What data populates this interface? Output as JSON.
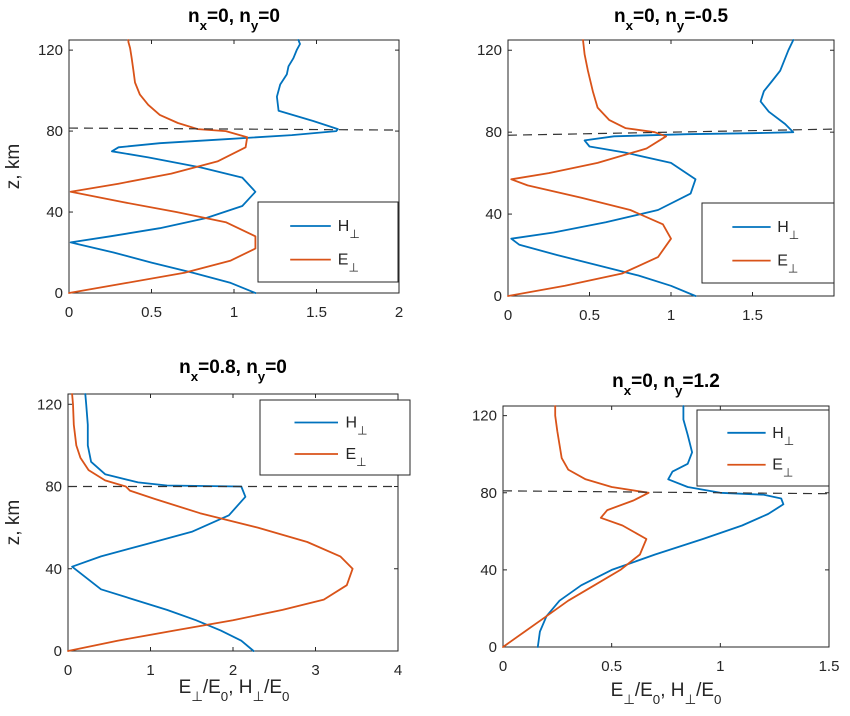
{
  "colors": {
    "H": "#0072BD",
    "E": "#D95319",
    "axis": "#262626",
    "dash": "#333333"
  },
  "xlabel_parts": [
    "E",
    "⊥",
    "/E",
    "0",
    ", H",
    "⊥",
    "/E",
    "0"
  ],
  "chart_data": [
    {
      "type": "line",
      "title_parts": [
        "n",
        "x",
        "=0, n",
        "y",
        "=0"
      ],
      "ylabel": "z, km",
      "xlim": [
        0,
        2
      ],
      "ylim": [
        0,
        125
      ],
      "xticks": [
        0,
        0.5,
        1,
        1.5,
        2
      ],
      "xtick_labels": [
        "0",
        "0.5",
        "1",
        "1.5",
        "2"
      ],
      "yticks": [
        0,
        40,
        80,
        120
      ],
      "ytick_labels": [
        "0",
        "40",
        "80",
        "120"
      ],
      "boundary_z": [
        81.5,
        80.5
      ],
      "legend": {
        "placement": "right-middle",
        "entries": [
          [
            "H",
            "⊥"
          ],
          [
            "E",
            "⊥"
          ]
        ]
      },
      "series": [
        {
          "name": "H⊥",
          "color_key": "H",
          "x": [
            1.13,
            0.98,
            0.75,
            0.5,
            0.27,
            0.06,
            0.01,
            0.25,
            0.55,
            0.83,
            1.05,
            1.13,
            1.05,
            0.8,
            0.48,
            0.26,
            0.3,
            0.55,
            0.95,
            1.35,
            1.62,
            1.63,
            1.48,
            1.27,
            1.26,
            1.28,
            1.32,
            1.33,
            1.36,
            1.38,
            1.4,
            1.39
          ],
          "y": [
            0,
            5,
            10,
            15,
            20,
            24,
            25,
            28,
            32,
            37,
            43,
            50,
            57,
            62,
            67,
            70,
            72,
            74,
            76,
            78,
            80,
            81,
            85,
            90,
            97,
            103,
            108,
            112,
            116,
            120,
            123,
            125
          ]
        },
        {
          "name": "E⊥",
          "color_key": "E",
          "x": [
            0,
            0.35,
            0.7,
            0.98,
            1.13,
            1.13,
            0.95,
            0.65,
            0.32,
            0.01,
            0.3,
            0.62,
            0.9,
            1.07,
            1.08,
            0.95,
            0.78,
            0.66,
            0.55,
            0.48,
            0.43,
            0.4,
            0.39,
            0.38,
            0.37,
            0.36,
            0.36
          ],
          "y": [
            0,
            5,
            10,
            16,
            22,
            28,
            35,
            40,
            45,
            50,
            54,
            59,
            65,
            72,
            77,
            80,
            81,
            84,
            88,
            93,
            98,
            104,
            110,
            116,
            121,
            124,
            125
          ]
        }
      ]
    },
    {
      "type": "line",
      "title_parts": [
        "n",
        "x",
        "=0, n",
        "y",
        "=-0.5"
      ],
      "ylabel": "",
      "xlim": [
        0,
        2
      ],
      "ylim": [
        0,
        125
      ],
      "xticks": [
        0,
        0.5,
        1,
        1.5
      ],
      "xtick_labels": [
        "0",
        "0.5",
        "1",
        "1.5"
      ],
      "yticks": [
        0,
        40,
        80,
        120
      ],
      "ytick_labels": [
        "0",
        "40",
        "80",
        "120"
      ],
      "boundary_z": [
        78.5,
        81.5
      ],
      "legend": {
        "placement": "right-middle",
        "entries": [
          [
            "H",
            "⊥"
          ],
          [
            "E",
            "⊥"
          ]
        ]
      },
      "series": [
        {
          "name": "H⊥",
          "color_key": "H",
          "x": [
            1.15,
            1.0,
            0.8,
            0.55,
            0.3,
            0.07,
            0.02,
            0.28,
            0.6,
            0.92,
            1.12,
            1.15,
            1.0,
            0.72,
            0.5,
            0.47,
            0.65,
            1.1,
            1.5,
            1.75,
            1.7,
            1.6,
            1.55,
            1.57,
            1.62,
            1.67,
            1.72,
            1.75
          ],
          "y": [
            0,
            5,
            10,
            15,
            20,
            25,
            28,
            31,
            36,
            42,
            50,
            57,
            65,
            70,
            73,
            76,
            78,
            79,
            79.5,
            80,
            84,
            90,
            95,
            100,
            105,
            110,
            120,
            125
          ]
        },
        {
          "name": "E⊥",
          "color_key": "E",
          "x": [
            0,
            0.35,
            0.7,
            0.92,
            1.0,
            0.95,
            0.75,
            0.45,
            0.12,
            0.02,
            0.25,
            0.55,
            0.85,
            0.97,
            0.9,
            0.72,
            0.62,
            0.55,
            0.52,
            0.49,
            0.47,
            0.46
          ],
          "y": [
            0,
            5,
            11,
            19,
            28,
            35,
            42,
            48,
            54,
            57,
            60,
            65,
            72,
            78,
            80,
            82,
            86,
            92,
            100,
            110,
            118,
            125
          ]
        }
      ]
    },
    {
      "type": "line",
      "title_parts": [
        "n",
        "x",
        "=0.8, n",
        "y",
        "=0"
      ],
      "ylabel": "z, km",
      "xlim": [
        0,
        4
      ],
      "ylim": [
        0,
        125
      ],
      "xticks": [
        0,
        1,
        2,
        3,
        4
      ],
      "xtick_labels": [
        "0",
        "1",
        "2",
        "3",
        "4"
      ],
      "yticks": [
        0,
        40,
        80,
        120
      ],
      "ytick_labels": [
        "0",
        "40",
        "80",
        "120"
      ],
      "boundary_z": [
        80,
        80
      ],
      "legend": {
        "placement": "top-right",
        "entries": [
          [
            "H",
            "⊥"
          ],
          [
            "E",
            "⊥"
          ]
        ]
      },
      "series": [
        {
          "name": "H⊥",
          "color_key": "H",
          "x": [
            2.25,
            2.1,
            1.85,
            1.55,
            1.2,
            0.8,
            0.4,
            0.05,
            0.4,
            0.95,
            1.5,
            1.95,
            2.15,
            2.1,
            1.2,
            0.85,
            0.45,
            0.28,
            0.24,
            0.24,
            0.22,
            0.21
          ],
          "y": [
            0,
            5,
            10,
            15,
            20,
            25,
            30,
            41,
            46,
            52,
            58,
            66,
            75,
            80,
            80.5,
            82,
            86,
            92,
            100,
            110,
            120,
            125
          ]
        },
        {
          "name": "E⊥",
          "color_key": "E",
          "x": [
            0,
            0.6,
            1.3,
            2.0,
            2.6,
            3.1,
            3.38,
            3.45,
            3.3,
            2.9,
            2.3,
            1.6,
            1.05,
            0.75,
            0.7,
            0.45,
            0.25,
            0.15,
            0.1,
            0.07,
            0.06,
            0.05
          ],
          "y": [
            0,
            5,
            10,
            15,
            20,
            25,
            32,
            40,
            46,
            53,
            60,
            67,
            74,
            78,
            80,
            83,
            88,
            94,
            100,
            110,
            120,
            125
          ]
        }
      ]
    },
    {
      "type": "line",
      "title_parts": [
        "n",
        "x",
        "=0, n",
        "y",
        "=1.2"
      ],
      "ylabel": "",
      "xlim": [
        0,
        1.5
      ],
      "ylim": [
        0,
        125
      ],
      "xticks": [
        0,
        0.5,
        1,
        1.5
      ],
      "xtick_labels": [
        "0",
        "0.5",
        "1",
        "1.5"
      ],
      "yticks": [
        0,
        40,
        80,
        120
      ],
      "ytick_labels": [
        "0",
        "40",
        "80",
        "120"
      ],
      "boundary_z": [
        81,
        79.5
      ],
      "legend": {
        "placement": "top-right",
        "entries": [
          [
            "H",
            "⊥"
          ],
          [
            "E",
            "⊥"
          ]
        ]
      },
      "series": [
        {
          "name": "H⊥",
          "color_key": "H",
          "x": [
            0.16,
            0.17,
            0.2,
            0.26,
            0.36,
            0.5,
            0.7,
            0.92,
            1.1,
            1.22,
            1.29,
            1.28,
            1.2,
            1.0,
            0.85,
            0.76,
            0.78,
            0.85,
            0.87,
            0.85,
            0.83,
            0.83
          ],
          "y": [
            0,
            8,
            16,
            24,
            32,
            40,
            48,
            56,
            63,
            69,
            74,
            77,
            79,
            80,
            83,
            87,
            91,
            95,
            101,
            110,
            118,
            125
          ]
        },
        {
          "name": "E⊥",
          "color_key": "E",
          "x": [
            0,
            0.1,
            0.2,
            0.3,
            0.42,
            0.54,
            0.63,
            0.66,
            0.55,
            0.45,
            0.48,
            0.6,
            0.67,
            0.5,
            0.38,
            0.3,
            0.27,
            0.26,
            0.25,
            0.24,
            0.24
          ],
          "y": [
            0,
            8,
            16,
            24,
            32,
            40,
            48,
            56,
            63,
            67,
            71,
            76,
            80,
            83,
            87,
            92,
            98,
            105,
            112,
            120,
            125
          ]
        }
      ]
    }
  ]
}
